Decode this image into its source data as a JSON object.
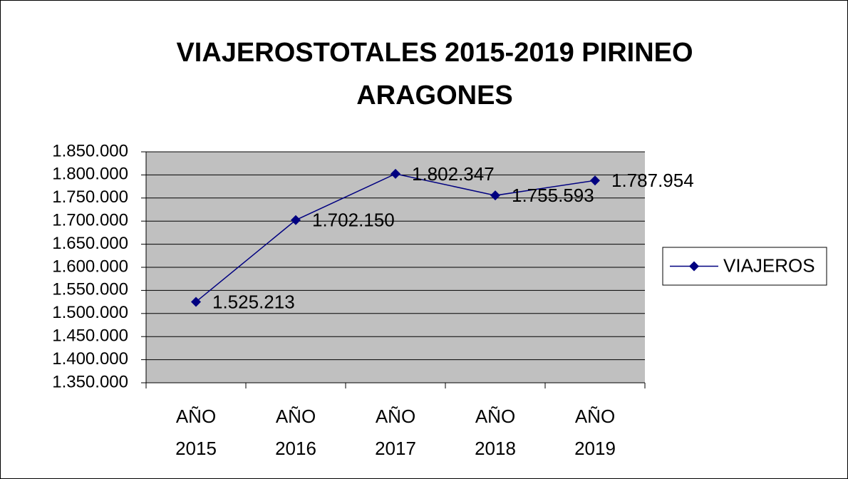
{
  "chart_data": {
    "type": "line",
    "title": "VIAJEROSTOTALES 2015-2019 PIRINEO ARAGONES",
    "categories": [
      "AÑO 2015",
      "AÑO 2016",
      "AÑO 2017",
      "AÑO 2018",
      "AÑO 2019"
    ],
    "series": [
      {
        "name": "VIAJEROS",
        "color": "#000080",
        "values": [
          1525213,
          1702150,
          1802347,
          1755593,
          1787954
        ],
        "value_labels": [
          "1.525.213",
          "1.702.150",
          "1.802.347",
          "1.755.593",
          "1.787.954"
        ]
      }
    ],
    "ylim": [
      1350000,
      1850000
    ],
    "yticks": [
      {
        "value": 1350000,
        "label": "1.350.000"
      },
      {
        "value": 1400000,
        "label": "1.400.000"
      },
      {
        "value": 1450000,
        "label": "1.450.000"
      },
      {
        "value": 1500000,
        "label": "1.500.000"
      },
      {
        "value": 1550000,
        "label": "1.550.000"
      },
      {
        "value": 1600000,
        "label": "1.600.000"
      },
      {
        "value": 1650000,
        "label": "1.650.000"
      },
      {
        "value": 1700000,
        "label": "1.700.000"
      },
      {
        "value": 1750000,
        "label": "1.750.000"
      },
      {
        "value": 1800000,
        "label": "1.800.000"
      },
      {
        "value": 1850000,
        "label": "1.850.000"
      }
    ],
    "grid": true,
    "plot_background": "#c0c0c0",
    "legend": "right"
  }
}
